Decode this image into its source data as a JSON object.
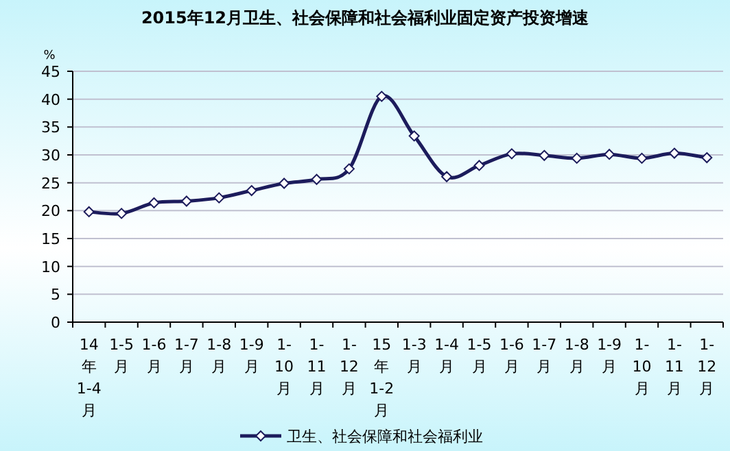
{
  "chart_data": {
    "type": "line",
    "title": "2015年12月卫生、社会保障和社会福利业固定资产投资增速",
    "ylabel": "%",
    "categories": [
      "14年1-4月",
      "1-5月",
      "1-6月",
      "1-7月",
      "1-8月",
      "1-9月",
      "1-10月",
      "1-11月",
      "1-12月",
      "15年1-2月",
      "1-3月",
      "1-4月",
      "1-5月",
      "1-6月",
      "1-7月",
      "1-8月",
      "1-9月",
      "1-10月",
      "1-11月",
      "1-12月"
    ],
    "series": [
      {
        "name": "卫生、社会保障和社会福利业",
        "color": "#1c1c5c",
        "values": [
          19.8,
          19.5,
          21.4,
          21.7,
          22.3,
          23.6,
          24.9,
          25.6,
          27.5,
          40.5,
          33.4,
          26.1,
          28.1,
          30.2,
          29.9,
          29.4,
          30.1,
          29.4,
          30.3,
          29.5
        ]
      }
    ],
    "ylim": [
      0,
      45
    ],
    "yticks": [
      0,
      5,
      10,
      15,
      20,
      25,
      30,
      35,
      40,
      45
    ],
    "grid": "y",
    "legend": "bottom",
    "marker": "diamond",
    "line_style": "solid"
  }
}
